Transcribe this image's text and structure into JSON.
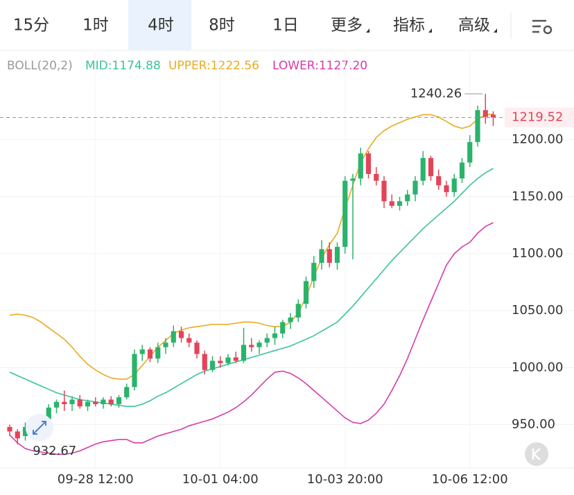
{
  "tabs": [
    "15分",
    "1时",
    "4时",
    "8时",
    "1日",
    "更多",
    "指标",
    "高级"
  ],
  "chart_data": {
    "type": "candlestick",
    "indicator": "BOLL(20,2)",
    "categories": [
      null,
      null,
      null,
      null,
      null,
      null,
      null,
      null,
      null,
      null,
      null,
      "09-28 12:00",
      null,
      null,
      null,
      null,
      null,
      null,
      null,
      null,
      null,
      null,
      null,
      null,
      null,
      null,
      null,
      "10-01 04:00",
      null,
      null,
      null,
      null,
      null,
      null,
      null,
      null,
      null,
      null,
      null,
      null,
      null,
      null,
      null,
      "10-03 20:00",
      null,
      null,
      null,
      null,
      null,
      null,
      null,
      null,
      null,
      null,
      null,
      null,
      null,
      null,
      null,
      "10-06 12:00",
      null,
      null,
      null
    ],
    "open": [
      948,
      944,
      940,
      946,
      944,
      955,
      965,
      970,
      968,
      972,
      966,
      970,
      968,
      972,
      968,
      974,
      983,
      1012,
      1016,
      1008,
      1018,
      1022,
      1032,
      1026,
      1022,
      1012,
      998,
      1006,
      1004,
      1009,
      1006,
      1020,
      1018,
      1022,
      1026,
      1030,
      1040,
      1044,
      1056,
      1076,
      1092,
      1104,
      1092,
      1106,
      1164,
      1166,
      1188,
      1170,
      1164,
      1146,
      1142,
      1146,
      1152,
      1164,
      1184,
      1168,
      1160,
      1154,
      1166,
      1180,
      1198,
      1226,
      1222
    ],
    "high": [
      950,
      946,
      952,
      950,
      958,
      968,
      972,
      980,
      975,
      976,
      972,
      974,
      974,
      975,
      976,
      986,
      1016,
      1020,
      1018,
      1022,
      1026,
      1037,
      1036,
      1030,
      1024,
      1015,
      1010,
      1010,
      1012,
      1014,
      1035,
      1026,
      1024,
      1030,
      1036,
      1042,
      1048,
      1060,
      1080,
      1098,
      1112,
      1110,
      1110,
      1168,
      1170,
      1193,
      1190,
      1176,
      1168,
      1152,
      1150,
      1156,
      1168,
      1190,
      1186,
      1174,
      1164,
      1170,
      1184,
      1204,
      1230,
      1240.26,
      1225
    ],
    "low": [
      940,
      932.67,
      936,
      938,
      942,
      952,
      960,
      962,
      962,
      964,
      962,
      966,
      964,
      966,
      965,
      972,
      980,
      1006,
      1005,
      1004,
      1012,
      1018,
      1022,
      1018,
      1008,
      994,
      996,
      1000,
      1002,
      1004,
      1004,
      1014,
      1012,
      1018,
      1020,
      1026,
      1034,
      1040,
      1052,
      1070,
      1086,
      1088,
      1086,
      1100,
      1095,
      1160,
      1166,
      1160,
      1140,
      1140,
      1138,
      1142,
      1146,
      1160,
      1164,
      1156,
      1150,
      1150,
      1162,
      1176,
      1194,
      1214,
      1212
    ],
    "close": [
      944,
      938,
      948,
      942,
      955,
      965,
      970,
      968,
      972,
      966,
      970,
      968,
      972,
      968,
      974,
      983,
      1012,
      1016,
      1008,
      1018,
      1022,
      1032,
      1026,
      1022,
      1012,
      998,
      1006,
      1004,
      1009,
      1006,
      1020,
      1018,
      1022,
      1026,
      1030,
      1040,
      1044,
      1056,
      1076,
      1092,
      1104,
      1092,
      1106,
      1164,
      1166,
      1188,
      1170,
      1164,
      1146,
      1142,
      1146,
      1152,
      1164,
      1184,
      1168,
      1160,
      1154,
      1166,
      1180,
      1198,
      1226,
      1220,
      1219.52
    ],
    "up_color": "#2bb36b",
    "down_color": "#e2455a",
    "series": [
      {
        "name": "MID:1174.88",
        "color": "#37c39c",
        "values": [
          996,
          993,
          990,
          987,
          984,
          981,
          978,
          976,
          974,
          972,
          971,
          970,
          969,
          968,
          967,
          966,
          966,
          968,
          971,
          975,
          978,
          982,
          986,
          990,
          994,
          997,
          999,
          1001,
          1003,
          1005,
          1007,
          1009,
          1011,
          1013,
          1015,
          1017,
          1019,
          1022,
          1025,
          1028,
          1032,
          1036,
          1040,
          1047,
          1054,
          1062,
          1070,
          1078,
          1086,
          1094,
          1101,
          1108,
          1115,
          1122,
          1128,
          1134,
          1140,
          1146,
          1153,
          1160,
          1166,
          1171,
          1174.88
        ]
      },
      {
        "name": "UPPER:1222.56",
        "color": "#eaaa1c",
        "values": [
          1046,
          1047,
          1046,
          1044,
          1040,
          1035,
          1030,
          1025,
          1018,
          1010,
          1003,
          998,
          994,
          991,
          990,
          990,
          994,
          1002,
          1010,
          1018,
          1024,
          1030,
          1033,
          1035,
          1036,
          1037,
          1038,
          1038,
          1038,
          1039,
          1040,
          1040,
          1039,
          1037,
          1036,
          1036,
          1040,
          1048,
          1062,
          1080,
          1096,
          1108,
          1118,
          1140,
          1160,
          1180,
          1192,
          1202,
          1208,
          1212,
          1215,
          1218,
          1220,
          1222,
          1222,
          1220,
          1216,
          1212,
          1210,
          1212,
          1218,
          1222,
          1222.56
        ]
      },
      {
        "name": "LOWER:1127.20",
        "color": "#d63aa8",
        "values": [
          941,
          934,
          929,
          927,
          926,
          925,
          924,
          924,
          925,
          927,
          930,
          933,
          935,
          936,
          937,
          937,
          934,
          934,
          937,
          940,
          942,
          944,
          946,
          949,
          951,
          953,
          955,
          958,
          961,
          965,
          970,
          976,
          983,
          990,
          996,
          997,
          995,
          991,
          986,
          980,
          974,
          968,
          962,
          956,
          952,
          951,
          954,
          960,
          968,
          980,
          993,
          1008,
          1025,
          1042,
          1058,
          1074,
          1090,
          1100,
          1106,
          1110,
          1118,
          1124,
          1127.2
        ]
      }
    ],
    "ylim": [
      912,
      1277
    ],
    "yticks": [
      {
        "value": 950,
        "label": "950.00"
      },
      {
        "value": 1000,
        "label": "1000.00"
      },
      {
        "value": 1050,
        "label": "1050.00"
      },
      {
        "value": 1100,
        "label": "1100.00"
      },
      {
        "value": 1150,
        "label": "1150.00"
      },
      {
        "value": 1200,
        "label": "1200.00"
      }
    ],
    "grid": true
  }
}
